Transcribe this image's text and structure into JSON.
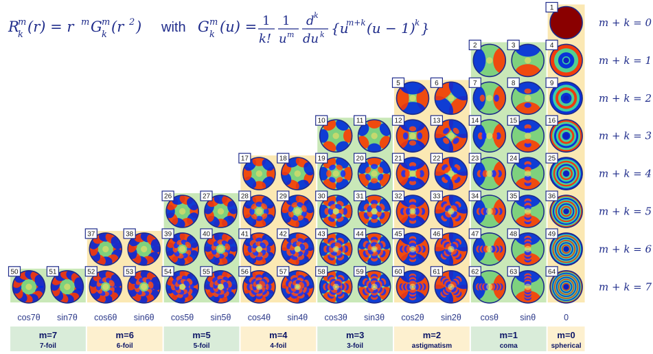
{
  "formula": {
    "lhs": "R",
    "lhs_sub": "k",
    "lhs_sup": "m",
    "lhs_arg": "(r) = r",
    "lhs_rsup": "m",
    "lhs_g": "G",
    "lhs_gsub": "k",
    "lhs_gsup": "m",
    "lhs_garg": "(r",
    "lhs_gsq": "2",
    "lhs_close": ")",
    "with": "with",
    "rhs": "G",
    "rhs_sub": "k",
    "rhs_sup": "m",
    "rhs_arg": "(u) =",
    "frac1_num": "1",
    "frac1_den": "k!",
    "frac2_num": "1",
    "frac2_den": "u",
    "frac2_den_sup": "m",
    "frac3_num": "d",
    "frac3_num_sup": "k",
    "frac3_den": "du",
    "frac3_den_sup": "k",
    "tail_open": "{u",
    "tail_sup": "m+k",
    "tail_mid": "(u − 1)",
    "tail_sup2": "k",
    "tail_close": "}"
  },
  "rows": [
    {
      "label": "m + k = 0"
    },
    {
      "label": "m + k = 1"
    },
    {
      "label": "m + k = 2"
    },
    {
      "label": "m + k = 3"
    },
    {
      "label": "m + k = 4"
    },
    {
      "label": "m + k = 5"
    },
    {
      "label": "m + k = 6"
    },
    {
      "label": "m + k = 7"
    }
  ],
  "columns": [
    {
      "trig": "cos7θ"
    },
    {
      "trig": "sin7θ"
    },
    {
      "trig": "cos6θ"
    },
    {
      "trig": "sin6θ"
    },
    {
      "trig": "cos5θ"
    },
    {
      "trig": "sin5θ"
    },
    {
      "trig": "cos4θ"
    },
    {
      "trig": "sin4θ"
    },
    {
      "trig": "cos3θ"
    },
    {
      "trig": "sin3θ"
    },
    {
      "trig": "cos2θ"
    },
    {
      "trig": "sin2θ"
    },
    {
      "trig": "cosθ"
    },
    {
      "trig": "sinθ"
    },
    {
      "trig": "0"
    }
  ],
  "groups": [
    {
      "m": "m=7",
      "desc": "7-foil",
      "color": "#d9ecd9"
    },
    {
      "m": "m=6",
      "desc": "6-foil",
      "color": "#fdf0cf"
    },
    {
      "m": "m=5",
      "desc": "5-foil",
      "color": "#d9ecd9"
    },
    {
      "m": "m=4",
      "desc": "4-foil",
      "color": "#fdf0cf"
    },
    {
      "m": "m=3",
      "desc": "3-foil",
      "color": "#d9ecd9"
    },
    {
      "m": "m=2",
      "desc": "astigmatism",
      "color": "#fdf0cf"
    },
    {
      "m": "m=1",
      "desc": "coma",
      "color": "#d9ecd9"
    },
    {
      "m": "m=0",
      "desc": "spherical",
      "color": "#fdf0cf"
    }
  ],
  "cells": [
    {
      "n": "1"
    },
    {
      "n": "2"
    },
    {
      "n": "3"
    },
    {
      "n": "4"
    },
    {
      "n": "5"
    },
    {
      "n": "6"
    },
    {
      "n": "7"
    },
    {
      "n": "8"
    },
    {
      "n": "9"
    },
    {
      "n": "10"
    },
    {
      "n": "11"
    },
    {
      "n": "12"
    },
    {
      "n": "13"
    },
    {
      "n": "14"
    },
    {
      "n": "15"
    },
    {
      "n": "16"
    },
    {
      "n": "17"
    },
    {
      "n": "18"
    },
    {
      "n": "19"
    },
    {
      "n": "20"
    },
    {
      "n": "21"
    },
    {
      "n": "22"
    },
    {
      "n": "23"
    },
    {
      "n": "24"
    },
    {
      "n": "25"
    },
    {
      "n": "26"
    },
    {
      "n": "27"
    },
    {
      "n": "28"
    },
    {
      "n": "29"
    },
    {
      "n": "30"
    },
    {
      "n": "31"
    },
    {
      "n": "32"
    },
    {
      "n": "33"
    },
    {
      "n": "34"
    },
    {
      "n": "35"
    },
    {
      "n": "36"
    },
    {
      "n": "37"
    },
    {
      "n": "38"
    },
    {
      "n": "39"
    },
    {
      "n": "40"
    },
    {
      "n": "41"
    },
    {
      "n": "42"
    },
    {
      "n": "43"
    },
    {
      "n": "44"
    },
    {
      "n": "45"
    },
    {
      "n": "46"
    },
    {
      "n": "47"
    },
    {
      "n": "48"
    },
    {
      "n": "49"
    },
    {
      "n": "50"
    },
    {
      "n": "51"
    },
    {
      "n": "52"
    },
    {
      "n": "53"
    },
    {
      "n": "54"
    },
    {
      "n": "55"
    },
    {
      "n": "56"
    },
    {
      "n": "57"
    },
    {
      "n": "58"
    },
    {
      "n": "59"
    },
    {
      "n": "60"
    },
    {
      "n": "61"
    },
    {
      "n": "62"
    },
    {
      "n": "63"
    },
    {
      "n": "64"
    }
  ],
  "colors": {
    "ink": "#1e2b8a",
    "disc_bg": "#7ed17e",
    "cell_green": "#c9e8b8",
    "cell_yellow": "#fbe8b3"
  }
}
